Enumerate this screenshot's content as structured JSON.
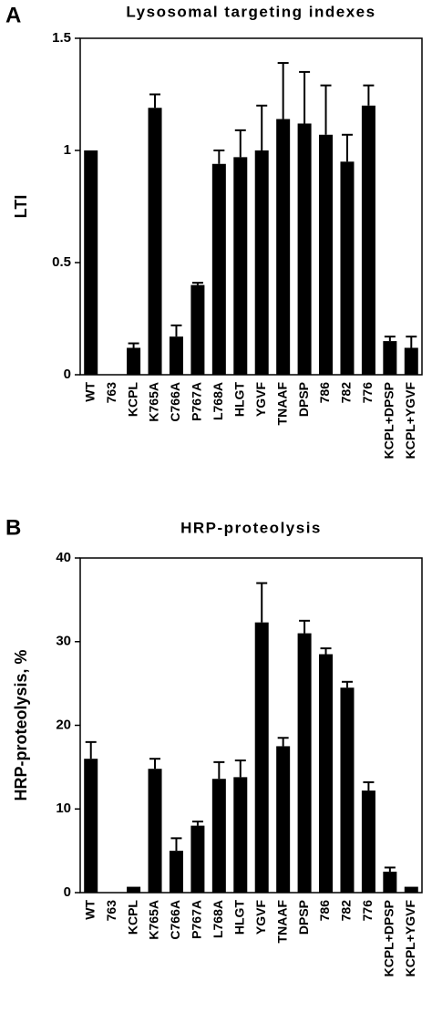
{
  "chart_data": [
    {
      "type": "bar",
      "panel_label": "A",
      "title": "Lysosomal targeting indexes",
      "y_label": "LTI",
      "categories": [
        "WT",
        "763",
        "KCPL",
        "K765A",
        "C766A",
        "P767A",
        "L768A",
        "HLGT",
        "YGVF",
        "TNAAF",
        "DPSP",
        "786",
        "782",
        "776",
        "KCPL+DPSP",
        "KCPL+YGVF"
      ],
      "values": [
        1.0,
        0,
        0.12,
        1.19,
        0.17,
        0.4,
        0.94,
        0.97,
        1.0,
        1.14,
        1.12,
        1.07,
        0.95,
        1.2,
        0.15,
        0.12
      ],
      "errors": [
        null,
        null,
        0.02,
        0.06,
        0.05,
        0.01,
        0.06,
        0.12,
        0.2,
        0.25,
        0.23,
        0.22,
        0.12,
        0.09,
        0.02,
        0.05
      ],
      "color": "#000000",
      "ylim": [
        0,
        1.5
      ],
      "yticks": [
        0,
        0.5,
        1,
        1.5
      ]
    },
    {
      "type": "bar",
      "panel_label": "B",
      "title": "HRP-proteolysis",
      "y_label": "HRP-proteolysis, %",
      "categories": [
        "WT",
        "763",
        "KCPL",
        "K765A",
        "C766A",
        "P767A",
        "L768A",
        "HLGT",
        "YGVF",
        "TNAAF",
        "DPSP",
        "786",
        "782",
        "776",
        "KCPL+DPSP",
        "KCPL+YGVF"
      ],
      "values": [
        16,
        0,
        0.7,
        14.8,
        5,
        8,
        13.6,
        13.8,
        32.3,
        17.5,
        31,
        28.5,
        24.5,
        12.2,
        2.5,
        0.7
      ],
      "errors": [
        2,
        null,
        null,
        1.2,
        1.5,
        0.5,
        2,
        2,
        4.7,
        1,
        1.5,
        0.7,
        0.7,
        1,
        0.5,
        null
      ],
      "color": "#000000",
      "ylim": [
        0,
        40
      ],
      "yticks": [
        0,
        10,
        20,
        30,
        40
      ]
    }
  ]
}
